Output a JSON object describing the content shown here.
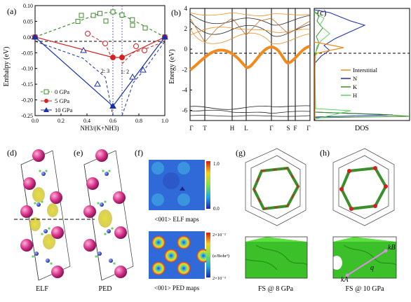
{
  "panels": {
    "a": {
      "label": "(a)",
      "ylabel": "Enthalpy (eV)",
      "xlabel": "NH3/(K+NH3)",
      "yticks": [
        "0.10",
        "0.05",
        "0.00",
        "-0.05",
        "-0.10",
        "-0.15",
        "-0.20",
        "-0.25"
      ],
      "xticks": [
        "0.0",
        "0.2",
        "0.4",
        "0.6",
        "0.8",
        "1.0"
      ],
      "annotations": [
        "2: 3",
        "1: 2"
      ],
      "legend": [
        "0 GPa",
        "5 GPa",
        "10 GPa"
      ]
    },
    "b": {
      "label": "(b)",
      "ylabel": "Energy (eV)",
      "yticks": [
        "4",
        "2",
        "0",
        "-2",
        "-4",
        "-6"
      ],
      "kpoints": [
        "Γ",
        "T",
        "H",
        "L",
        "Γ",
        "S",
        "F",
        "Γ"
      ]
    },
    "c": {
      "label": "(c)",
      "xlabel": "DOS",
      "legend": [
        "Interstitial",
        "N",
        "K",
        "H"
      ]
    },
    "d": {
      "label": "(d)",
      "caption": "ELF"
    },
    "e": {
      "label": "(e)",
      "caption": "PED"
    },
    "f": {
      "label": "(f)",
      "elf_caption": "<001> ELF maps",
      "ped_caption": "<001> PED maps",
      "elf_scale": [
        "1.0",
        "0.0"
      ],
      "ped_scale": [
        "2×10⁻²",
        "2×10⁻³"
      ],
      "ped_unit": "(e/Bohr³)"
    },
    "g": {
      "label": "(g)",
      "caption": "FS @ 8 GPa"
    },
    "h": {
      "label": "(h)",
      "caption": "FS @ 10 GPa",
      "vector_labels": [
        "kB",
        "q",
        "kA"
      ]
    }
  },
  "colors": {
    "green": "#3a8f2a",
    "red": "#d42020",
    "blue": "#1a2fa8",
    "orange": "#f08a1c",
    "magenta": "#d6338a"
  },
  "chart_data": [
    {
      "type": "line",
      "panel": "a",
      "xlabel": "NH3/(K+NH3)",
      "ylabel": "Enthalpy (eV)",
      "xlim": [
        0,
        1
      ],
      "ylim": [
        -0.25,
        0.1
      ],
      "series": [
        {
          "name": "0 GPa",
          "x": [
            0,
            0.33,
            0.5,
            0.6,
            0.67,
            0.75,
            1.0
          ],
          "y": [
            0,
            0.05,
            0.075,
            0.08,
            0.07,
            0.055,
            0
          ]
        },
        {
          "name": "5 GPa",
          "x": [
            0,
            0.6,
            0.67,
            1.0
          ],
          "y": [
            0,
            -0.065,
            -0.065,
            0
          ]
        },
        {
          "name": "10 GPa",
          "x": [
            0,
            0.6,
            1.0
          ],
          "y": [
            0,
            -0.22,
            0
          ]
        }
      ]
    }
  ]
}
